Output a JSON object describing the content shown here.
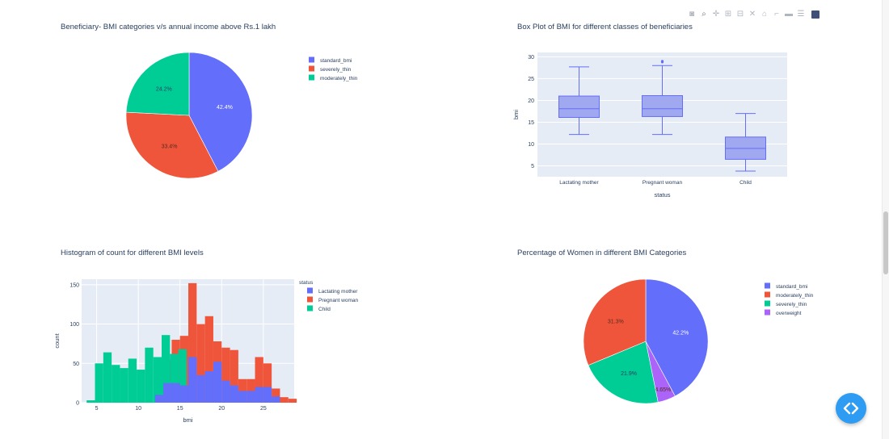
{
  "modebar": {
    "icons": [
      "camera-icon",
      "zoom-icon",
      "pan-icon",
      "zoom-in-icon",
      "zoom-out-icon",
      "autoscale-icon",
      "home-icon",
      "spike-lines-icon",
      "hover-closest-icon",
      "hover-compare-icon",
      "plotly-logo"
    ]
  },
  "colors": {
    "blue": "#636efa",
    "red": "#ef553b",
    "green": "#00cc96",
    "purple": "#ab63fa",
    "boxfill": "#a0a8f0",
    "plotbg": "#e5ecf6",
    "fab": "#2e9cf3"
  },
  "chart_data": [
    {
      "type": "pie",
      "title": "Beneficiary- BMI categories v/s annual income above Rs.1 lakh",
      "labels": [
        "standard_bmi",
        "severely_thin",
        "moderately_thin"
      ],
      "values": [
        42.4,
        33.4,
        24.2
      ],
      "text": [
        "42.4%",
        "33.4%",
        "24.2%"
      ],
      "colors": [
        "#636efa",
        "#ef553b",
        "#00cc96"
      ],
      "legend": "top-right"
    },
    {
      "type": "box",
      "title": "Box Plot of BMI for different classes of beneficiaries",
      "xlabel": "status",
      "ylabel": "bmi",
      "categories": [
        "Lactating mother",
        "Pregnant woman",
        "Child"
      ],
      "boxes": [
        {
          "min": 12.2,
          "q1": 16.1,
          "median": 18.1,
          "q3": 21.0,
          "max": 27.7,
          "outliers": []
        },
        {
          "min": 12.2,
          "q1": 16.3,
          "median": 18.1,
          "q3": 21.1,
          "max": 28.0,
          "outliers": [
            28.8,
            29.0
          ]
        },
        {
          "min": 3.8,
          "q1": 6.5,
          "median": 9.0,
          "q3": 11.6,
          "max": 17.0,
          "outliers": []
        }
      ],
      "yticks": [
        5,
        10,
        15,
        20,
        25,
        30
      ],
      "ylim": [
        2.5,
        31
      ]
    },
    {
      "type": "histogram",
      "title": "Histogram of count for different BMI levels",
      "xlabel": "bmi",
      "ylabel": "count",
      "legend_title": "status",
      "xlim": [
        3.2,
        28.7
      ],
      "ylim": [
        0,
        157
      ],
      "xticks": [
        5,
        10,
        15,
        20,
        25
      ],
      "yticks": [
        0,
        50,
        100,
        150
      ],
      "series": [
        {
          "name": "Lactating mother",
          "color": "#636efa",
          "bins": [
            [
              12,
              13,
              10
            ],
            [
              13,
              14,
              25
            ],
            [
              14,
              15,
              25
            ],
            [
              15,
              16,
              22
            ],
            [
              16,
              17,
              58
            ],
            [
              17,
              18,
              35
            ],
            [
              18,
              19,
              40
            ],
            [
              19,
              20,
              52
            ],
            [
              20,
              21,
              28
            ],
            [
              21,
              22,
              22
            ],
            [
              22,
              23,
              15
            ],
            [
              23,
              24,
              15
            ],
            [
              24,
              25,
              20
            ],
            [
              25,
              26,
              20
            ],
            [
              26,
              27,
              8
            ]
          ]
        },
        {
          "name": "Pregnant woman",
          "color": "#ef553b",
          "bins": [
            [
              12,
              13,
              50
            ],
            [
              13,
              14,
              55
            ],
            [
              14,
              15,
              80
            ],
            [
              15,
              16,
              85
            ],
            [
              16,
              17,
              152
            ],
            [
              17,
              18,
              100
            ],
            [
              18,
              19,
              110
            ],
            [
              19,
              20,
              78
            ],
            [
              20,
              21,
              70
            ],
            [
              21,
              22,
              67
            ],
            [
              22,
              23,
              30
            ],
            [
              23,
              24,
              30
            ],
            [
              24,
              25,
              58
            ],
            [
              25,
              26,
              50
            ],
            [
              26,
              27,
              18
            ],
            [
              27,
              28,
              7
            ],
            [
              28,
              29,
              5
            ]
          ]
        },
        {
          "name": "Child",
          "color": "#00cc96",
          "bins": [
            [
              3.8,
              4.8,
              3
            ],
            [
              4.8,
              5.8,
              50
            ],
            [
              5.8,
              6.8,
              64
            ],
            [
              6.8,
              7.8,
              48
            ],
            [
              7.8,
              8.8,
              44
            ],
            [
              8.8,
              9.8,
              56
            ],
            [
              9.8,
              10.8,
              42
            ],
            [
              10.8,
              11.8,
              70
            ],
            [
              11.8,
              12.8,
              58
            ],
            [
              12.8,
              13.8,
              86
            ],
            [
              13.8,
              14.8,
              62
            ],
            [
              14.8,
              15.8,
              68
            ]
          ]
        }
      ]
    },
    {
      "type": "pie",
      "title": "Percentage of Women in different BMI Categories",
      "labels": [
        "standard_bmi",
        "moderately_thin",
        "severely_thin",
        "overweight"
      ],
      "values": [
        42.2,
        31.3,
        21.9,
        4.65
      ],
      "text": [
        "42.2%",
        "31.3%",
        "21.9%",
        "4.65%"
      ],
      "colors": [
        "#636efa",
        "#ef553b",
        "#00cc96",
        "#ab63fa"
      ],
      "order": [
        "standard_bmi",
        "overweight",
        "severely_thin",
        "moderately_thin"
      ],
      "legend": "top-right"
    }
  ]
}
